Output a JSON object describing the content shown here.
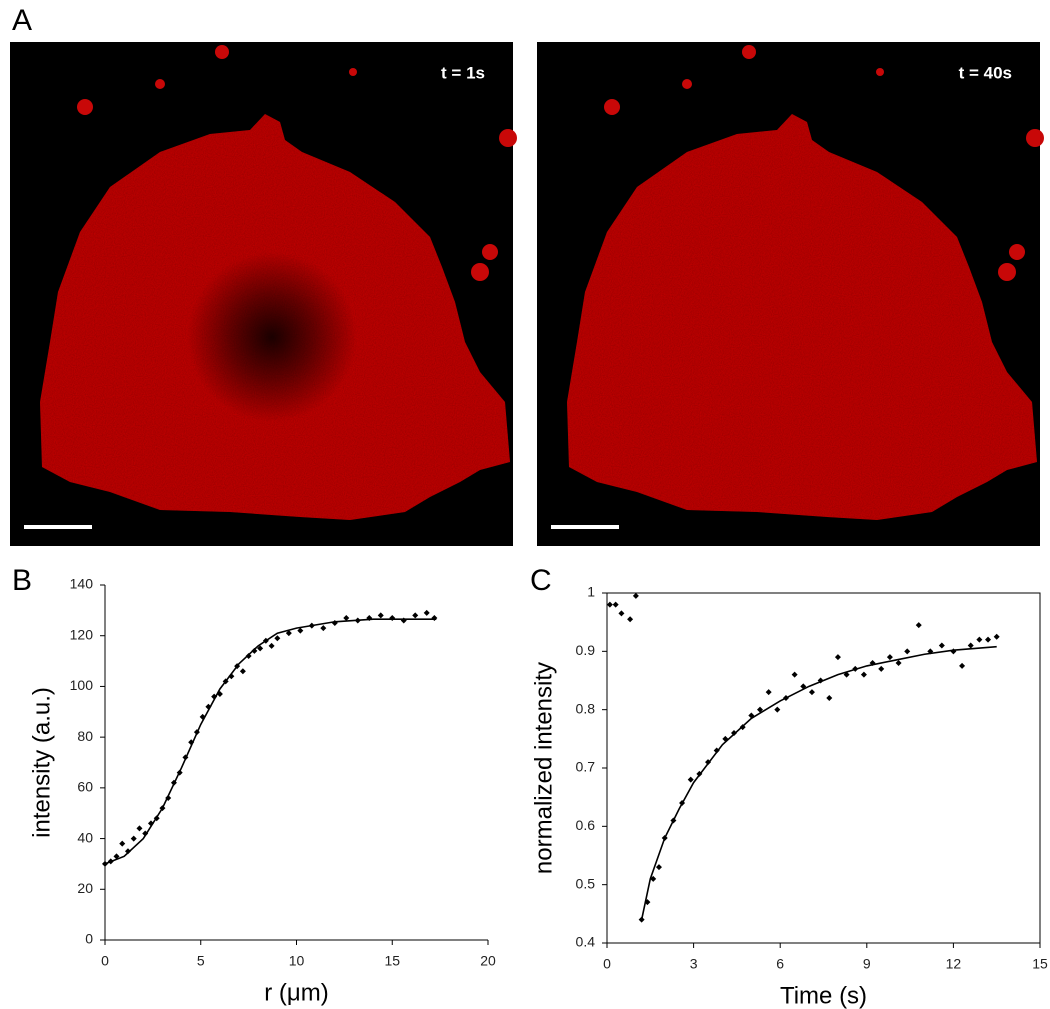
{
  "panel_a": {
    "label": "A",
    "images": [
      {
        "caption": "t = 1s"
      },
      {
        "caption": "t = 40s"
      }
    ]
  },
  "chart_data": [
    {
      "type": "scatter",
      "label": "B",
      "xlabel": "r (μm)",
      "ylabel": "intensity (a.u.)",
      "xlim": [
        0,
        20
      ],
      "ylim": [
        0,
        140
      ],
      "xticks": [
        0,
        5,
        10,
        15,
        20
      ],
      "yticks": [
        0,
        20,
        40,
        60,
        80,
        100,
        120,
        140
      ],
      "frame": false,
      "series": [
        {
          "type": "scatter",
          "color": "#000000",
          "x": [
            0,
            0.3,
            0.6,
            0.9,
            1.2,
            1.5,
            1.8,
            2.1,
            2.4,
            2.7,
            3.0,
            3.3,
            3.6,
            3.9,
            4.2,
            4.5,
            4.8,
            5.1,
            5.4,
            5.7,
            6.0,
            6.3,
            6.6,
            6.9,
            7.2,
            7.5,
            7.8,
            8.1,
            8.4,
            8.7,
            9.0,
            9.6,
            10.2,
            10.8,
            11.4,
            12.0,
            12.6,
            13.2,
            13.8,
            14.4,
            15.0,
            15.6,
            16.2,
            16.8,
            17.2
          ],
          "values": [
            30,
            31,
            33,
            38,
            35,
            40,
            44,
            42,
            46,
            48,
            52,
            56,
            62,
            66,
            72,
            78,
            82,
            88,
            92,
            96,
            97,
            102,
            104,
            108,
            106,
            112,
            114,
            115,
            118,
            116,
            119,
            121,
            122,
            124,
            123,
            125,
            127,
            126,
            127,
            128,
            127,
            126,
            128,
            129,
            127
          ]
        },
        {
          "type": "line",
          "color": "#000000",
          "x": [
            0,
            1,
            2,
            3,
            4,
            5,
            6,
            7,
            8,
            9,
            10,
            12,
            14,
            17.3
          ],
          "values": [
            30,
            33,
            40,
            52,
            68,
            85,
            99,
            109,
            116,
            121,
            123,
            125.5,
            126.5,
            126.5
          ]
        }
      ]
    },
    {
      "type": "scatter",
      "label": "C",
      "xlabel": "Time (s)",
      "ylabel": "normalized intensity",
      "xlim": [
        0,
        15
      ],
      "ylim": [
        0.4,
        1
      ],
      "xticks": [
        0,
        3,
        6,
        9,
        12,
        15
      ],
      "yticks": [
        0.4,
        0.5,
        0.6,
        0.7,
        0.8,
        0.9,
        1
      ],
      "frame": true,
      "series": [
        {
          "type": "scatter",
          "color": "#000000",
          "x": [
            0.1,
            0.3,
            0.5,
            0.8,
            1.0,
            1.2,
            1.4,
            1.6,
            1.8,
            2.0,
            2.3,
            2.6,
            2.9,
            3.2,
            3.5,
            3.8,
            4.1,
            4.4,
            4.7,
            5.0,
            5.3,
            5.6,
            5.9,
            6.2,
            6.5,
            6.8,
            7.1,
            7.4,
            7.7,
            8.0,
            8.3,
            8.6,
            8.9,
            9.2,
            9.5,
            9.8,
            10.1,
            10.4,
            10.8,
            11.2,
            11.6,
            12.0,
            12.3,
            12.6,
            12.9,
            13.2,
            13.5
          ],
          "values": [
            0.98,
            0.98,
            0.965,
            0.955,
            0.995,
            0.44,
            0.47,
            0.51,
            0.53,
            0.58,
            0.61,
            0.64,
            0.68,
            0.69,
            0.71,
            0.73,
            0.75,
            0.76,
            0.77,
            0.79,
            0.8,
            0.83,
            0.8,
            0.82,
            0.86,
            0.84,
            0.83,
            0.85,
            0.82,
            0.89,
            0.86,
            0.87,
            0.86,
            0.88,
            0.87,
            0.89,
            0.88,
            0.9,
            0.945,
            0.9,
            0.91,
            0.9,
            0.875,
            0.91,
            0.92,
            0.92,
            0.925
          ]
        },
        {
          "type": "line",
          "color": "#000000",
          "x": [
            1.2,
            1.5,
            2,
            2.5,
            3,
            4,
            5,
            6,
            7,
            8,
            9,
            10,
            11,
            12,
            13.5
          ],
          "values": [
            0.44,
            0.51,
            0.58,
            0.63,
            0.675,
            0.74,
            0.785,
            0.815,
            0.84,
            0.86,
            0.875,
            0.885,
            0.895,
            0.902,
            0.908
          ]
        }
      ]
    }
  ]
}
